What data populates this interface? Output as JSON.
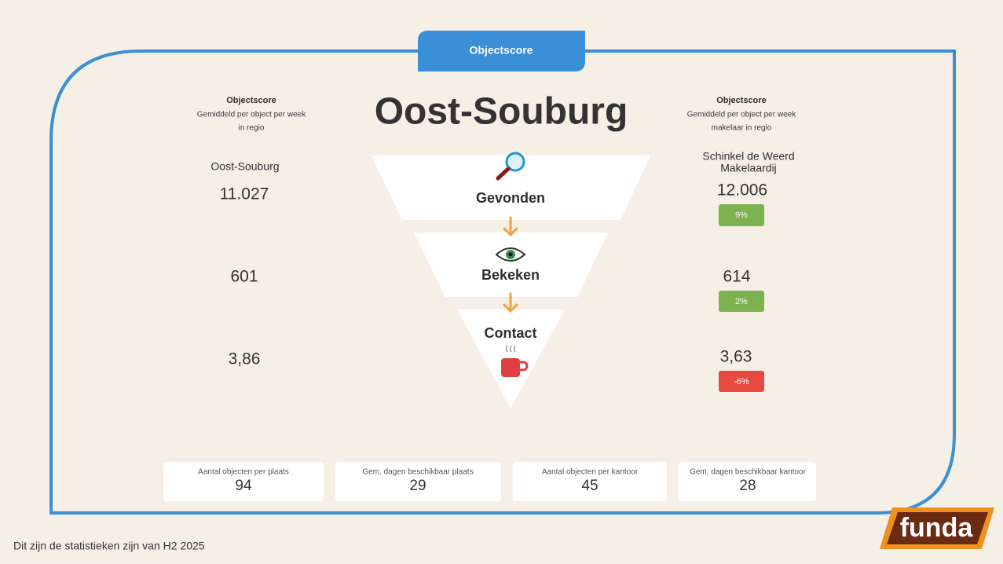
{
  "tab": "Objectscore",
  "title": "Oost-Souburg",
  "left": {
    "heading": "Objectscore",
    "sub": [
      "Gemiddeld per object per week",
      "in regio"
    ],
    "name": "Oost-Souburg",
    "values": [
      "11.027",
      "601",
      "3,86"
    ]
  },
  "right": {
    "heading": "Objectscore",
    "sub": [
      "Gemiddeld per object per week",
      "makelaar in regio"
    ],
    "name": [
      "Schinkel de Weerd",
      "Makelaardij"
    ],
    "values": [
      "12.006",
      "614",
      "3,63"
    ],
    "badges": [
      "9%",
      "2%",
      "-6%"
    ]
  },
  "stages": [
    "Gevonden",
    "Bekeken",
    "Contact"
  ],
  "cards": [
    {
      "label": "Aantal objecten per plaats",
      "value": "94"
    },
    {
      "label": "Gem. dagen beschikbaar plaats",
      "value": "29"
    },
    {
      "label": "Aantal objecten per kantoor",
      "value": "45"
    },
    {
      "label": "Gem. dagen beschikbaar kantoor",
      "value": "28"
    }
  ],
  "footer": "Dit zijn de statistieken zijn van H2 2025",
  "logo": "funda"
}
